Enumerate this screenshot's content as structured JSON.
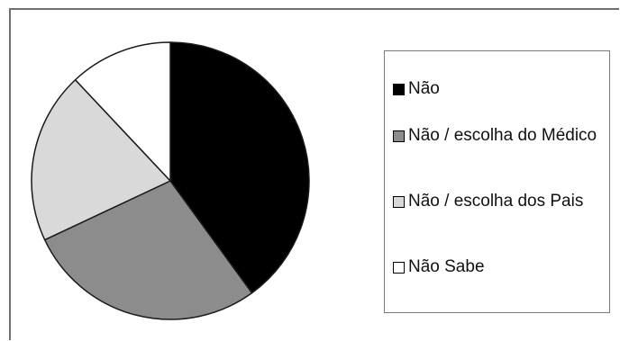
{
  "chart_data": {
    "type": "pie",
    "title": "",
    "legend_position": "right",
    "slices": [
      {
        "label": "Não",
        "value": 40,
        "color": "#000000"
      },
      {
        "label": "Não / escolha do Médico",
        "value": 28,
        "color": "#8c8c8c"
      },
      {
        "label": "Não / escolha dos Pais",
        "value": 20,
        "color": "#d9d9d9"
      },
      {
        "label": "Não Sabe",
        "value": 12,
        "color": "#ffffff"
      }
    ]
  }
}
